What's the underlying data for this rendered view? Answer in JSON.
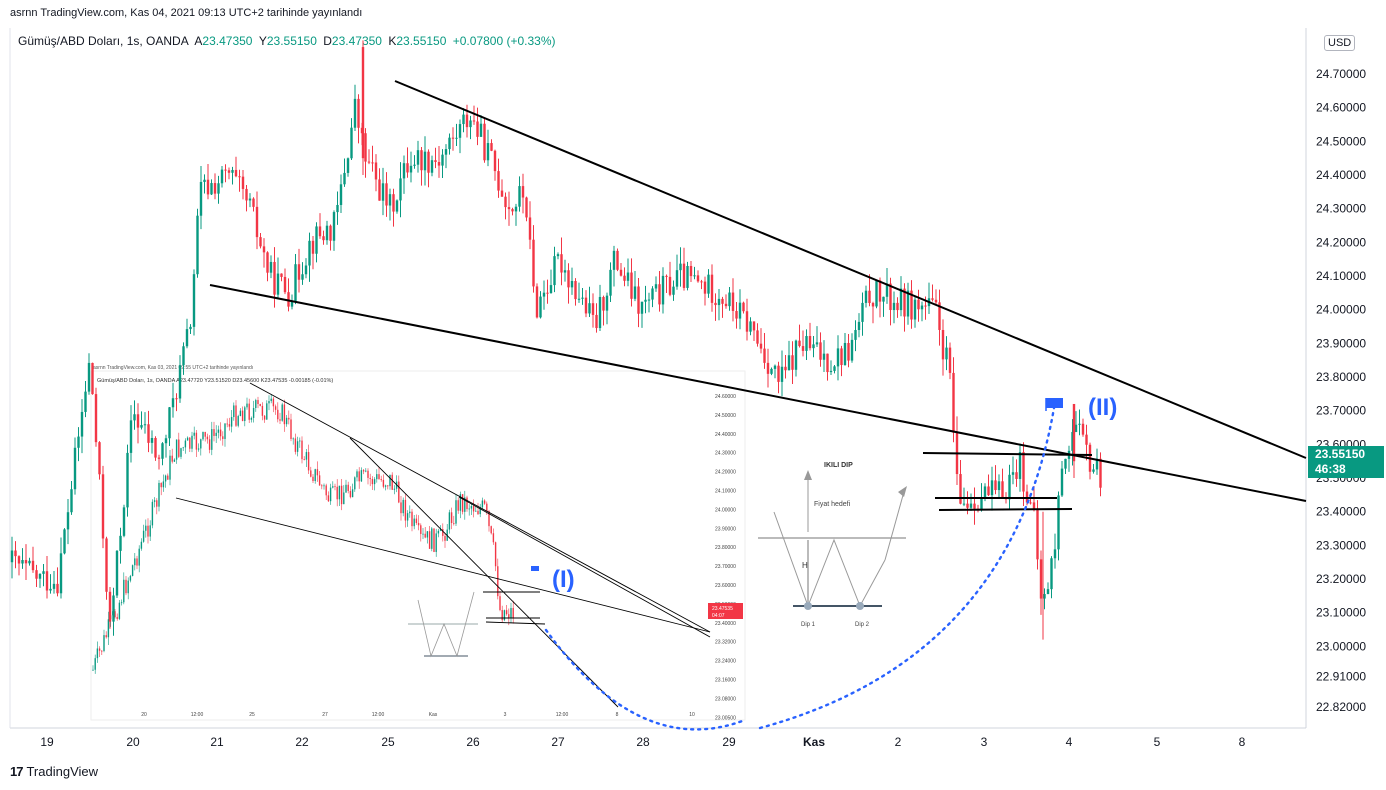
{
  "header": {
    "publisher": "asrnn TradingView.com, Kas 04, 2021 09:13 UTC+2 tarihinde yayınlandı"
  },
  "legend": {
    "symbol": "Gümüş/ABD Doları, 1s, OANDA",
    "open_label": "A",
    "open": "23.47350",
    "high_label": "Y",
    "high": "23.55150",
    "low_label": "D",
    "low": "23.47350",
    "close_label": "K",
    "close": "23.55150",
    "change": "+0.07800 (+0.33%)"
  },
  "currency": "USD",
  "price_tag": {
    "price": "23.55150",
    "countdown": "46:38"
  },
  "annotations": {
    "wave2_label": "(II)",
    "wave1_label": "(I)"
  },
  "inset": {
    "header": "asrnn TradingView.com, Kas 03, 2021 09:55 UTC+2 tarihinde yayınlandı",
    "legend": "Gümüş/ABD Doları, 1s, OANDA A23.47720 Y23.51520 D23.45600 K23.47535 -0.00185 (-0.01%)",
    "y_ticks": [
      "24.60000",
      "24.50000",
      "24.40000",
      "24.30000",
      "24.20000",
      "24.10000",
      "24.00000",
      "23.90000",
      "23.80000",
      "23.70000",
      "23.60000",
      "23.50000",
      "23.40000",
      "23.32000",
      "23.24000",
      "23.16000",
      "23.08000",
      "23.00500"
    ],
    "x_ticks": [
      "20",
      "12:00",
      "25",
      "27",
      "12:00",
      "Kas",
      "3",
      "12:00",
      "8",
      "10"
    ],
    "price_tag": "23.47535",
    "price_tag_time": "04:07"
  },
  "diagram": {
    "title": "IKILI DIP",
    "target_label": "Fiyat hedefi",
    "height_label": "H",
    "dip1_label": "Dip 1",
    "dip2_label": "Dip 2"
  },
  "brand": "TradingView",
  "chart_data": {
    "type": "candlestick",
    "title": "",
    "y_ticks": [
      "24.70000",
      "24.60000",
      "24.50000",
      "24.40000",
      "24.30000",
      "24.20000",
      "24.10000",
      "24.00000",
      "23.90000",
      "23.80000",
      "23.70000",
      "23.60000",
      "23.50000",
      "23.40000",
      "23.30000",
      "23.20000",
      "23.10000",
      "23.00000",
      "22.91000",
      "22.82000"
    ],
    "x_ticks": [
      "19",
      "20",
      "21",
      "22",
      "25",
      "26",
      "27",
      "28",
      "29",
      "Kas",
      "2",
      "3",
      "4",
      "5",
      "8"
    ],
    "ylim": [
      22.78,
      24.8
    ],
    "grid": false,
    "last_price": 23.5515,
    "colors": {
      "up": "#089981",
      "down": "#f23645",
      "trend": "#000000",
      "projection": "#2962ff",
      "label": "#2962ff"
    },
    "daily_ohlc_approx": [
      {
        "day": "19",
        "open": 23.18,
        "high": 23.35,
        "low": 23.05,
        "close": 23.25
      },
      {
        "day": "20",
        "open": 23.25,
        "high": 23.9,
        "low": 22.93,
        "close": 23.85
      },
      {
        "day": "21",
        "open": 23.85,
        "high": 24.42,
        "low": 23.7,
        "close": 24.25
      },
      {
        "day": "22",
        "open": 24.25,
        "high": 24.43,
        "low": 24.02,
        "close": 24.15
      },
      {
        "day": "25",
        "open": 24.15,
        "high": 24.8,
        "low": 24.1,
        "close": 24.4
      },
      {
        "day": "26",
        "open": 24.4,
        "high": 24.6,
        "low": 24.28,
        "close": 24.32
      },
      {
        "day": "27",
        "open": 24.32,
        "high": 24.4,
        "low": 23.88,
        "close": 24.02
      },
      {
        "day": "28",
        "open": 24.02,
        "high": 24.25,
        "low": 23.88,
        "close": 24.1
      },
      {
        "day": "29",
        "open": 24.1,
        "high": 24.25,
        "low": 23.72,
        "close": 23.85
      },
      {
        "day": "Kas",
        "open": 23.85,
        "high": 23.95,
        "low": 23.72,
        "close": 23.88
      },
      {
        "day": "2",
        "open": 23.88,
        "high": 24.1,
        "low": 23.85,
        "close": 24.0
      },
      {
        "day": "3",
        "open": 24.0,
        "high": 24.05,
        "low": 23.4,
        "close": 23.45
      },
      {
        "day": "4",
        "open": 23.45,
        "high": 23.72,
        "low": 23.02,
        "close": 23.55
      }
    ]
  }
}
